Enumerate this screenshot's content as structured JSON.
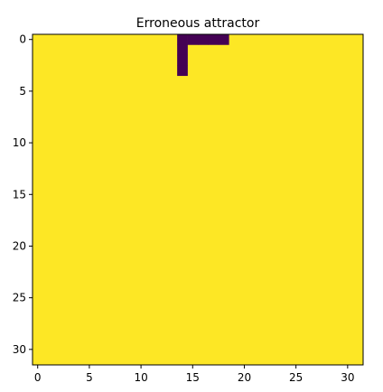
{
  "chart_data": {
    "type": "heatmap",
    "title": "Erroneous attractor",
    "xlabel": "",
    "ylabel": "",
    "rows": 32,
    "cols": 32,
    "xlim": [
      -0.5,
      31.5
    ],
    "ylim": [
      31.5,
      -0.5
    ],
    "xticks": [
      0,
      5,
      10,
      15,
      20,
      25,
      30
    ],
    "yticks": [
      0,
      5,
      10,
      15,
      20,
      25,
      30
    ],
    "colormap": "viridis",
    "colors": {
      "high": "#fde725",
      "low": "#440154"
    },
    "grid": false,
    "legend": "none",
    "values": [
      "00000000000000111110000000000000",
      "00000000000000100000000000000000",
      "00000000000000100000000000000000",
      "00000000000000100000000000000000",
      "00000000000000000000000000000000",
      "00000000000000000000000000000000",
      "00000000000000000000000000000000",
      "00000000000000000000000000000000",
      "00000000000000000000000000000000",
      "00000000000000000000000000000000",
      "00000000000000000000000000000000",
      "00000000000000000000000000000000",
      "00000000000000000000000000000000",
      "00000000000000000000000000000000",
      "00000000000000000000000000000000",
      "00000000000000000000000000000000",
      "00000000000000000000000000000000",
      "00000000000000000000000000000000",
      "00000000000000000000000000000000",
      "00000000000000000000000000000000",
      "00000000000000000000000000000000",
      "00000000000000000000000000000000",
      "00000000000000000000000000000000",
      "00000000000000000000000000000000",
      "00000000000000000000000000000000",
      "00000000000000000000000000000000",
      "00000000000000000000000000000000",
      "00000000000000000000000000000000",
      "00000000000000000000000000000000",
      "00000000000000000000000000000000",
      "00000000000000000000000000000000",
      "00000000000000000000000000000000"
    ]
  }
}
